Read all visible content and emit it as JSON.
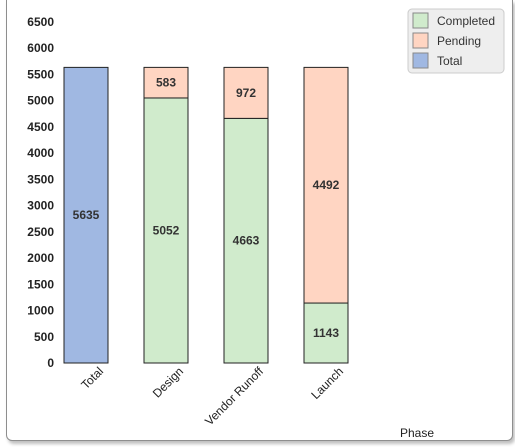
{
  "chart_data": {
    "type": "bar",
    "stacked": true,
    "categories": [
      "Total",
      "Design",
      "Vendor Runoff",
      "Launch"
    ],
    "series": [
      {
        "name": "Completed",
        "color": "#d0ebcc",
        "values": [
          null,
          5052,
          4663,
          1143
        ]
      },
      {
        "name": "Pending",
        "color": "#ffd5c2",
        "values": [
          null,
          583,
          972,
          4492
        ]
      },
      {
        "name": "Total",
        "color": "#a0b8e2",
        "values": [
          5635,
          null,
          null,
          null
        ]
      }
    ],
    "xlabel": "Phase",
    "ylabel": "",
    "ylim": [
      0,
      6500
    ],
    "yticks": [
      0,
      500,
      1000,
      1500,
      2000,
      2500,
      3000,
      3500,
      4000,
      4500,
      5000,
      5500,
      6000,
      6500
    ],
    "legend_position": "top-right",
    "grid": false
  }
}
